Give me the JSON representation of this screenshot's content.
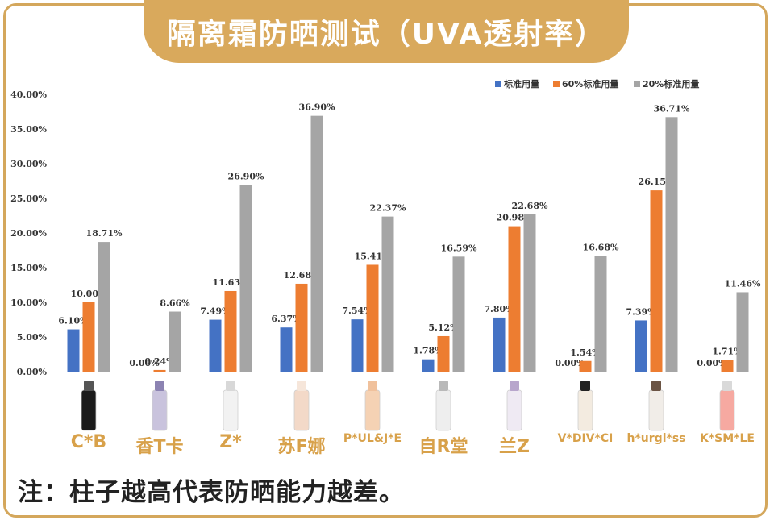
{
  "title": "隔离霜防晒测试（UVA透射率）",
  "note": "注：柱子越高代表防晒能力越差。",
  "colors": {
    "accent": "#d9a95c",
    "label": "#d8a14a",
    "series": [
      "#4472c4",
      "#ed7d31",
      "#a5a5a5"
    ]
  },
  "chart_data": {
    "type": "bar",
    "categories": [
      "C*B",
      "香T卡",
      "Z*",
      "苏F娜",
      "P*UL&J*E",
      "自R堂",
      "兰Z",
      "V*DIV*CI",
      "h*urgl*ss",
      "K*SM*LE"
    ],
    "series": [
      {
        "name": "标准用量",
        "values": [
          6.1,
          0.0,
          7.49,
          6.37,
          7.54,
          1.78,
          7.8,
          0.0,
          7.39,
          0.0
        ],
        "labels": [
          "6.10%",
          "0.00%",
          "7.49%",
          "6.37%",
          "7.54%",
          "1.78%",
          "7.80%",
          "0.00%",
          "7.39%",
          "0.00%"
        ]
      },
      {
        "name": "60%标准用量",
        "values": [
          10.0,
          0.24,
          11.63,
          12.68,
          15.41,
          5.12,
          20.98,
          1.54,
          26.15,
          1.71
        ],
        "labels": [
          "10.00%",
          "0.24%",
          "11.63%",
          "12.68%",
          "15.41%",
          "5.12%",
          "20.98%",
          "1.54%",
          "26.15%",
          "1.71%"
        ]
      },
      {
        "name": "20%标准用量",
        "values": [
          18.71,
          8.66,
          26.9,
          36.9,
          22.37,
          16.59,
          22.68,
          16.68,
          36.71,
          11.46
        ],
        "labels": [
          "18.71%",
          "8.66%",
          "26.90%",
          "36.90%",
          "22.37%",
          "16.59%",
          "22.68%",
          "16.68%",
          "36.71%",
          "11.46%"
        ]
      }
    ],
    "yticks": [
      "0.00%",
      "5.00%",
      "10.00%",
      "15.00%",
      "20.00%",
      "25.00%",
      "30.00%",
      "35.00%",
      "40.00%"
    ],
    "ylim": [
      0,
      40
    ],
    "grid": false,
    "legend": "top-right"
  },
  "products": [
    {
      "icon": "black-tube-bottle-icon",
      "color": "#1a1a1a",
      "cap": "#555555"
    },
    {
      "icon": "purple-tube-icon",
      "color": "#c9c3dd",
      "cap": "#8c83b2"
    },
    {
      "icon": "white-tube-icon",
      "color": "#f2f2f2",
      "cap": "#d8d8d8"
    },
    {
      "icon": "pink-pump-bottle-icon",
      "color": "#f3d9c8",
      "cap": "#f6e6da"
    },
    {
      "icon": "peach-bottle-icon",
      "color": "#f5d2b4",
      "cap": "#f0c19c"
    },
    {
      "icon": "white-pump-bottle-icon",
      "color": "#eeeeee",
      "cap": "#b9b9b9"
    },
    {
      "icon": "white-purple-pump-icon",
      "color": "#efeaf3",
      "cap": "#b8a6cc"
    },
    {
      "icon": "beige-bottle-icon",
      "color": "#f3ebe0",
      "cap": "#222222"
    },
    {
      "icon": "brown-cap-bottle-icon",
      "color": "#f1ede8",
      "cap": "#6b5444"
    },
    {
      "icon": "pink-tube-icon",
      "color": "#f6a9a1",
      "cap": "#d9d9d9"
    }
  ]
}
